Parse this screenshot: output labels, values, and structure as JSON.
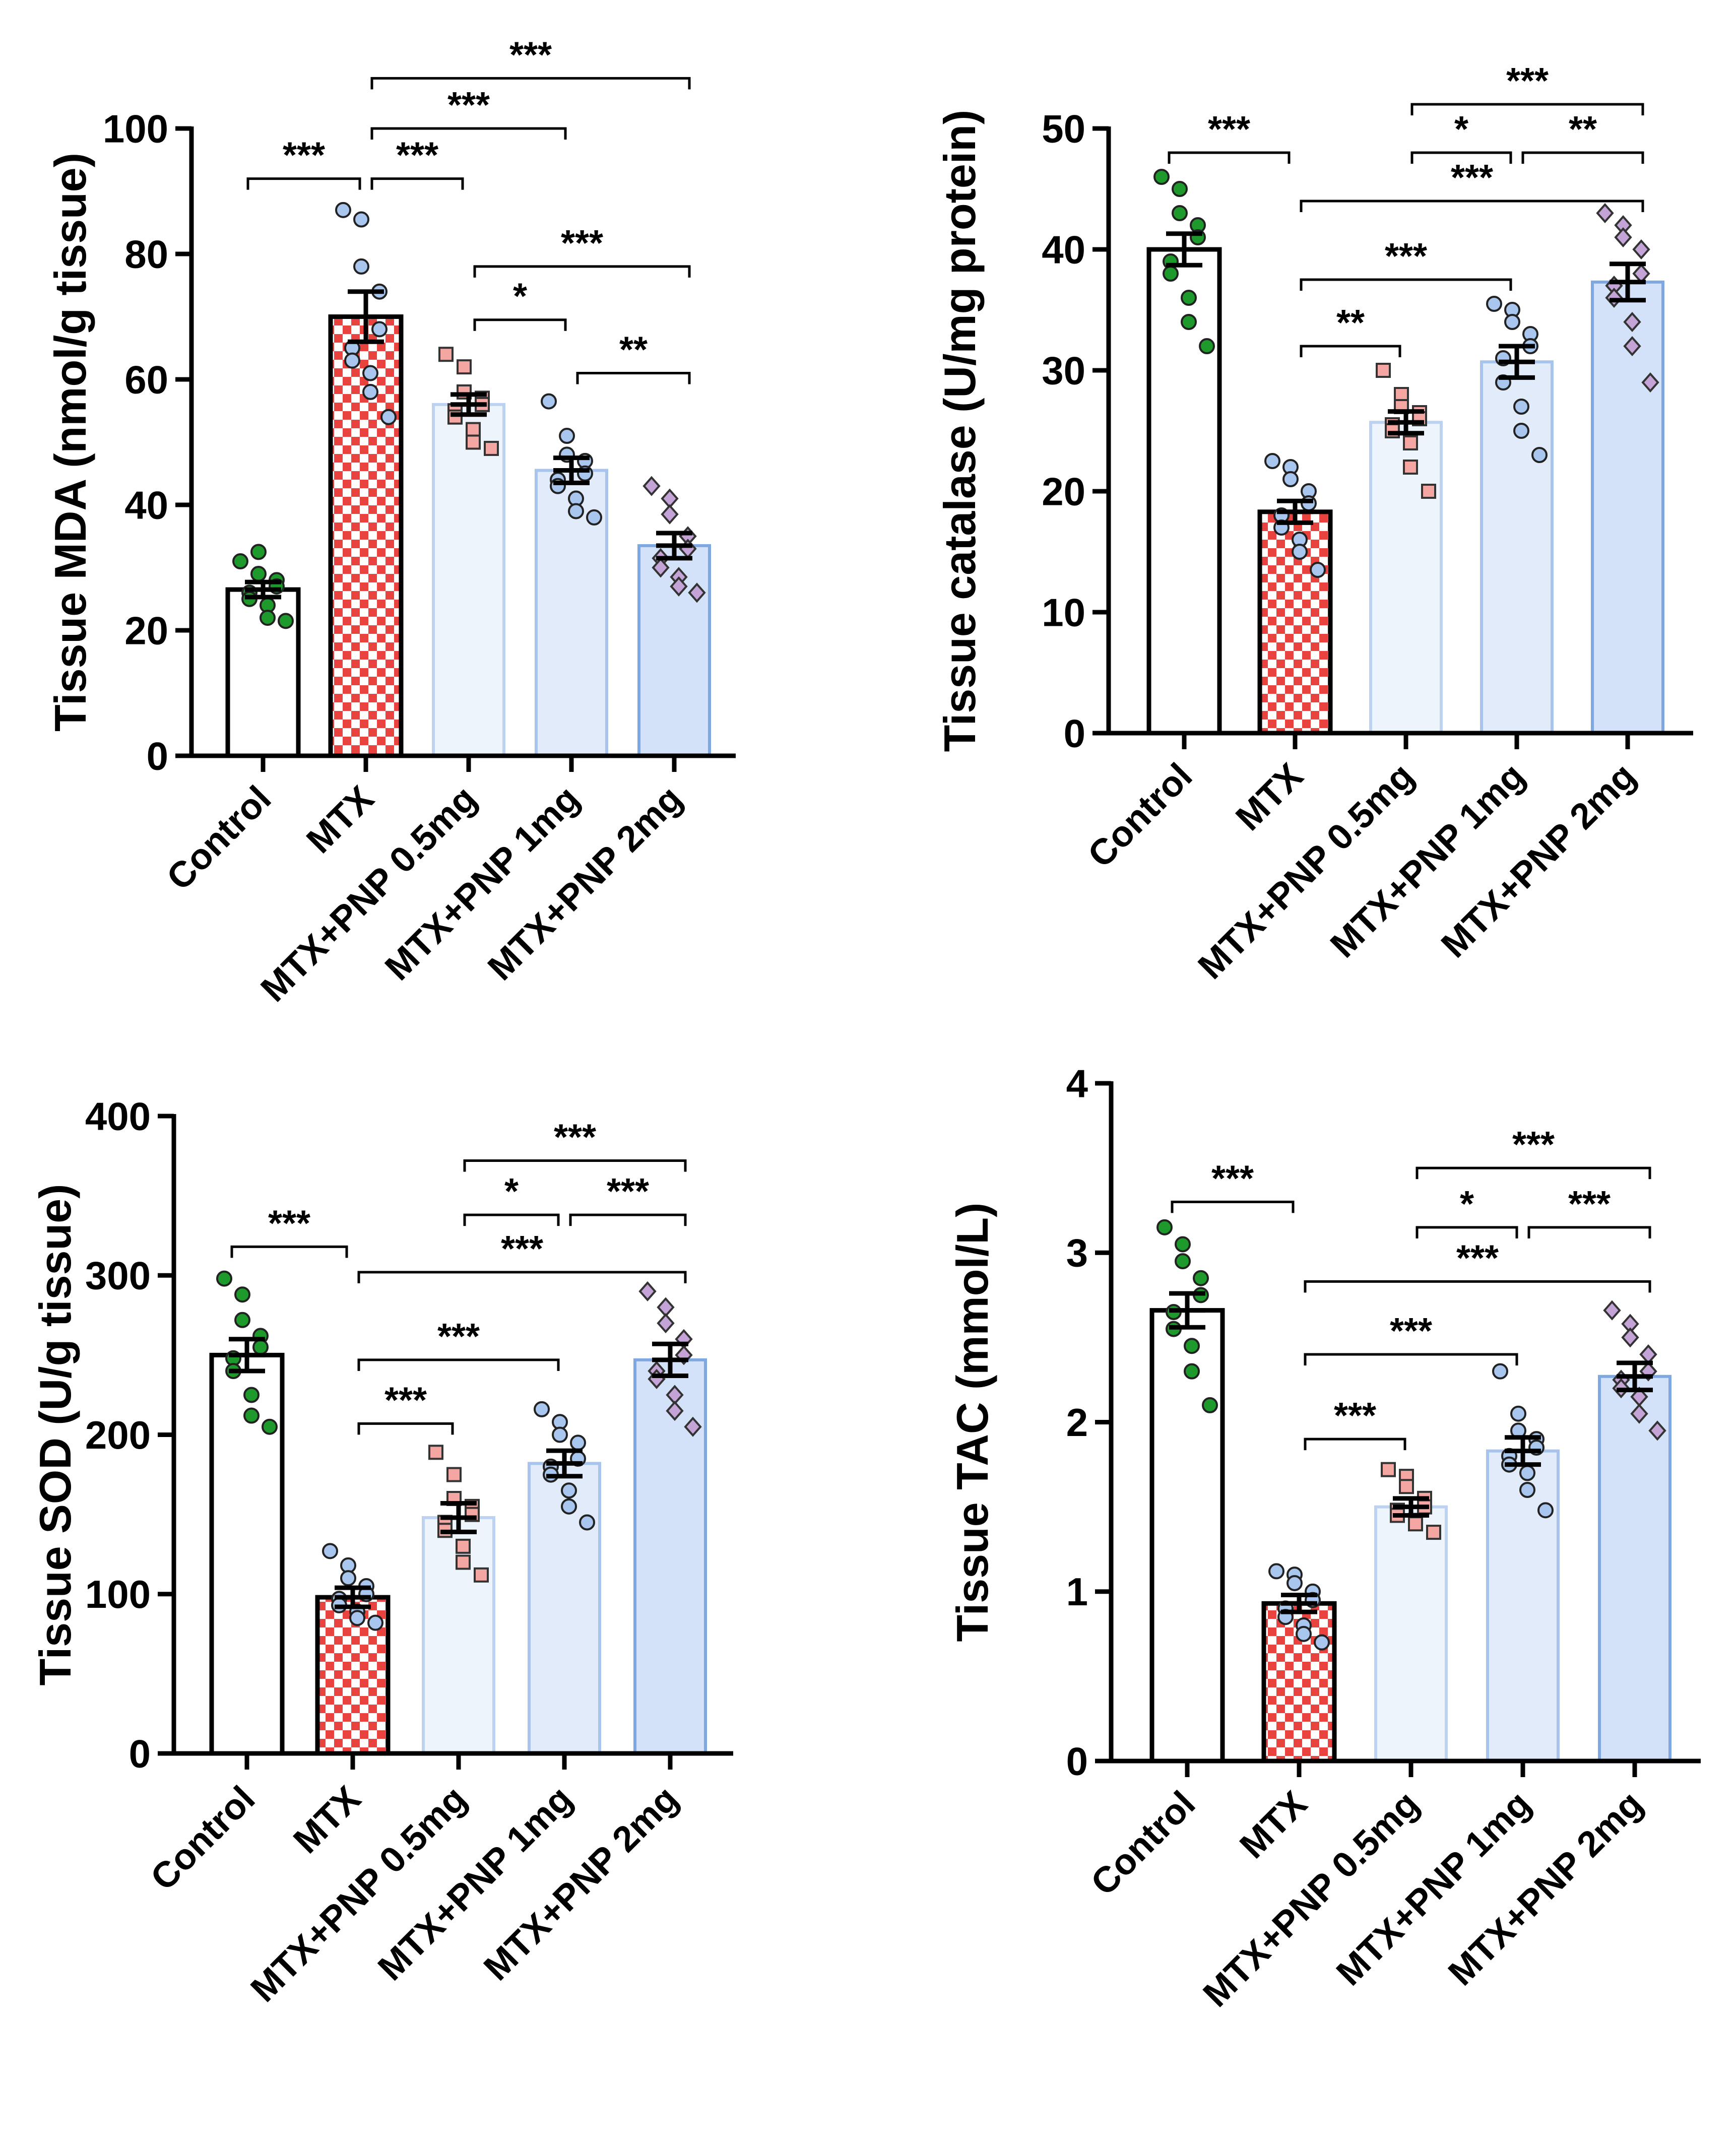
{
  "colors": {
    "control": "#ffffff",
    "mtx_checker_red": "#e8433f",
    "pnp_05": "#eef4fc",
    "pnp_1": "#e1ebfa",
    "pnp_2": "#d3e2f8",
    "pnp_05_edge": "#bcd2f0",
    "pnp_1_edge": "#a9c4ec",
    "pnp_2_edge": "#7fa7e0",
    "dot_green": "#1d9a2b",
    "dot_blue": "#a9c6ee",
    "dot_pink": "#f4a6a3",
    "dot_purple": "#c4a3d6"
  },
  "chart_data": [
    {
      "type": "bar",
      "ylabel": "Tissue MDA (nmol/g tissue)",
      "ylim": [
        0,
        100
      ],
      "yticks": [
        0,
        20,
        40,
        60,
        80,
        100
      ],
      "categories": [
        "Control",
        "MTX",
        "MTX+PNP 0.5mg",
        "MTX+PNP 1mg",
        "MTX+PNP 2mg"
      ],
      "values": [
        26.5,
        70,
        56,
        45.5,
        33.5
      ],
      "sem": [
        1.2,
        4,
        1.6,
        2,
        2
      ],
      "points": [
        [
          31,
          32.5,
          29,
          28,
          27,
          26,
          25,
          24,
          22,
          21.5
        ],
        [
          87,
          85.5,
          78,
          74,
          68,
          65,
          63,
          61,
          58,
          54
        ],
        [
          64,
          62,
          58,
          57,
          56,
          55,
          54,
          52,
          50,
          49
        ],
        [
          56.5,
          51,
          48,
          47,
          45,
          44,
          43,
          41,
          39,
          38
        ],
        [
          43,
          41,
          38.5,
          35,
          33,
          31.5,
          30,
          28.5,
          27,
          26
        ]
      ],
      "markers": [
        "dot_green",
        "dot_blue",
        "dot_pink",
        "dot_blue",
        "dot_purple"
      ],
      "sig": [
        {
          "from": 0,
          "to": 1,
          "y": 92,
          "label": "***"
        },
        {
          "from": 1,
          "to": 2,
          "y": 92,
          "label": "***"
        },
        {
          "from": 1,
          "to": 3,
          "y": 100,
          "label": "***"
        },
        {
          "from": 1,
          "to": 4,
          "y": 108,
          "label": "***"
        },
        {
          "from": 2,
          "to": 4,
          "y": 78,
          "label": "***"
        },
        {
          "from": 2,
          "to": 3,
          "y": 69.5,
          "label": "*"
        },
        {
          "from": 3,
          "to": 4,
          "y": 61,
          "label": "**"
        }
      ]
    },
    {
      "type": "bar",
      "ylabel": "Tissue catalase (U/mg protein)",
      "ylim": [
        0,
        50
      ],
      "yticks": [
        0,
        10,
        20,
        30,
        40,
        50
      ],
      "categories": [
        "Control",
        "MTX",
        "MTX+PNP 0.5mg",
        "MTX+PNP 1mg",
        "MTX+PNP 2mg"
      ],
      "values": [
        40,
        18.3,
        25.7,
        30.7,
        37.3
      ],
      "sem": [
        1.3,
        0.9,
        0.9,
        1.3,
        1.5
      ],
      "points": [
        [
          46,
          45,
          43,
          42,
          41,
          39,
          38,
          36,
          34,
          32
        ],
        [
          22.5,
          22,
          21,
          20,
          19,
          18,
          17,
          16,
          15,
          13.5
        ],
        [
          30,
          28,
          27,
          26.5,
          26,
          25.5,
          25,
          24,
          22,
          20
        ],
        [
          35.5,
          35,
          34,
          33,
          32,
          31,
          29,
          27,
          25,
          23
        ],
        [
          43,
          42,
          41,
          40,
          38,
          37,
          36,
          34,
          32,
          29
        ]
      ],
      "markers": [
        "dot_green",
        "dot_blue",
        "dot_pink",
        "dot_blue",
        "dot_purple"
      ],
      "sig": [
        {
          "from": 0,
          "to": 1,
          "y": 48,
          "label": "***"
        },
        {
          "from": 1,
          "to": 2,
          "y": 32,
          "label": "**"
        },
        {
          "from": 1,
          "to": 3,
          "y": 37.5,
          "label": "***"
        },
        {
          "from": 1,
          "to": 4,
          "y": 44,
          "label": "***"
        },
        {
          "from": 2,
          "to": 3,
          "y": 48,
          "label": "*"
        },
        {
          "from": 3,
          "to": 4,
          "y": 48,
          "label": "**"
        },
        {
          "from": 2,
          "to": 4,
          "y": 52,
          "label": "***"
        }
      ]
    },
    {
      "type": "bar",
      "ylabel": "Tissue SOD (U/g tissue)",
      "ylim": [
        0,
        400
      ],
      "yticks": [
        0,
        100,
        200,
        300,
        400
      ],
      "categories": [
        "Control",
        "MTX",
        "MTX+PNP 0.5mg",
        "MTX+PNP 1mg",
        "MTX+PNP 2mg"
      ],
      "values": [
        250,
        98,
        148,
        182,
        247
      ],
      "sem": [
        10,
        6,
        9,
        8,
        10
      ],
      "points": [
        [
          298,
          288,
          272,
          262,
          255,
          248,
          240,
          225,
          212,
          205
        ],
        [
          127,
          118,
          110,
          105,
          100,
          97,
          93,
          89,
          85,
          82
        ],
        [
          189,
          175,
          160,
          155,
          150,
          145,
          140,
          130,
          120,
          112
        ],
        [
          216,
          208,
          200,
          195,
          185,
          180,
          175,
          165,
          155,
          145
        ],
        [
          290,
          280,
          270,
          260,
          250,
          240,
          235,
          225,
          215,
          205
        ]
      ],
      "markers": [
        "dot_green",
        "dot_blue",
        "dot_pink",
        "dot_blue",
        "dot_purple"
      ],
      "sig": [
        {
          "from": 0,
          "to": 1,
          "y": 318,
          "label": "***"
        },
        {
          "from": 1,
          "to": 2,
          "y": 207,
          "label": "***"
        },
        {
          "from": 1,
          "to": 3,
          "y": 247,
          "label": "***"
        },
        {
          "from": 1,
          "to": 4,
          "y": 302,
          "label": "***"
        },
        {
          "from": 2,
          "to": 3,
          "y": 338,
          "label": "*"
        },
        {
          "from": 3,
          "to": 4,
          "y": 338,
          "label": "***"
        },
        {
          "from": 2,
          "to": 4,
          "y": 372,
          "label": "***"
        }
      ]
    },
    {
      "type": "bar",
      "ylabel": "Tissue TAC (mmol/L)",
      "ylim": [
        0,
        4
      ],
      "yticks": [
        0,
        1,
        2,
        3,
        4
      ],
      "categories": [
        "Control",
        "MTX",
        "MTX+PNP 0.5mg",
        "MTX+PNP 1mg",
        "MTX+PNP 2mg"
      ],
      "values": [
        2.66,
        0.93,
        1.5,
        1.83,
        2.27
      ],
      "sem": [
        0.1,
        0.05,
        0.05,
        0.08,
        0.08
      ],
      "points": [
        [
          3.15,
          3.05,
          2.95,
          2.85,
          2.75,
          2.65,
          2.55,
          2.45,
          2.3,
          2.1
        ],
        [
          1.12,
          1.1,
          1.05,
          1.0,
          0.95,
          0.9,
          0.85,
          0.8,
          0.75,
          0.7
        ],
        [
          1.72,
          1.68,
          1.62,
          1.55,
          1.5,
          1.48,
          1.45,
          1.42,
          1.4,
          1.35
        ],
        [
          2.3,
          2.05,
          1.95,
          1.9,
          1.85,
          1.8,
          1.75,
          1.7,
          1.6,
          1.48
        ],
        [
          2.66,
          2.58,
          2.5,
          2.4,
          2.3,
          2.25,
          2.2,
          2.15,
          2.05,
          1.95
        ]
      ],
      "markers": [
        "dot_green",
        "dot_blue",
        "dot_pink",
        "dot_blue",
        "dot_purple"
      ],
      "sig": [
        {
          "from": 0,
          "to": 1,
          "y": 3.3,
          "label": "***"
        },
        {
          "from": 1,
          "to": 2,
          "y": 1.9,
          "label": "***"
        },
        {
          "from": 1,
          "to": 3,
          "y": 2.4,
          "label": "***"
        },
        {
          "from": 1,
          "to": 4,
          "y": 2.83,
          "label": "***"
        },
        {
          "from": 2,
          "to": 3,
          "y": 3.15,
          "label": "*"
        },
        {
          "from": 3,
          "to": 4,
          "y": 3.15,
          "label": "***"
        },
        {
          "from": 2,
          "to": 4,
          "y": 3.5,
          "label": "***"
        }
      ]
    }
  ]
}
